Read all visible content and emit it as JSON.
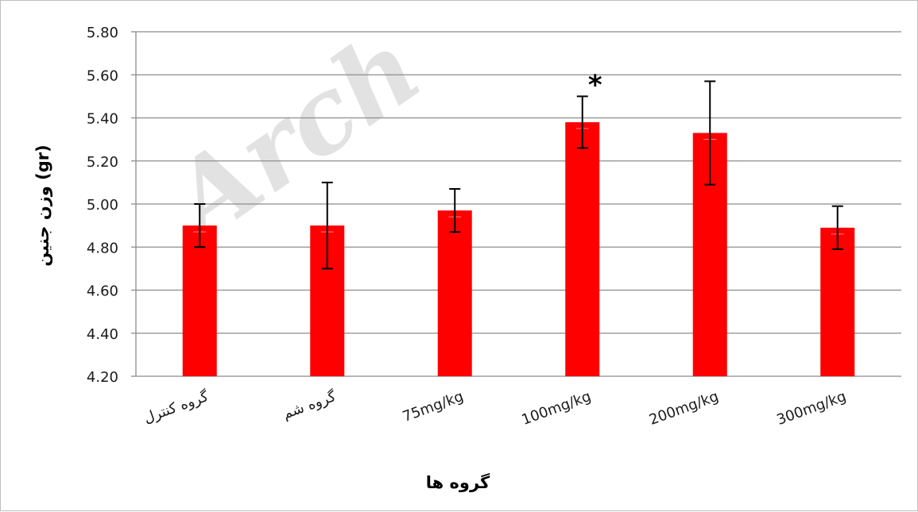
{
  "watermark": "Arch",
  "chart_data": {
    "type": "bar",
    "categories": [
      "گروه کنترل",
      "گروه شم",
      "75mg/kg",
      "100mg/kg",
      "200mg/kg",
      "300mg/kg"
    ],
    "values": [
      4.9,
      4.9,
      4.97,
      5.38,
      5.33,
      4.89
    ],
    "error_plus": [
      0.1,
      0.2,
      0.1,
      0.12,
      0.24,
      0.1
    ],
    "error_minus": [
      0.1,
      0.2,
      0.1,
      0.12,
      0.24,
      0.1
    ],
    "ylim": [
      4.2,
      5.8
    ],
    "yticks": [
      "4.20",
      "4.40",
      "4.60",
      "4.80",
      "5.00",
      "5.20",
      "5.40",
      "5.60",
      "5.80"
    ],
    "xlabel": "گروه ها",
    "ylabel": "وزن جنین (gr)",
    "annotations": [
      {
        "category_index": 3,
        "text": "*"
      }
    ],
    "bar_color": "#ff0000",
    "grid": true
  }
}
